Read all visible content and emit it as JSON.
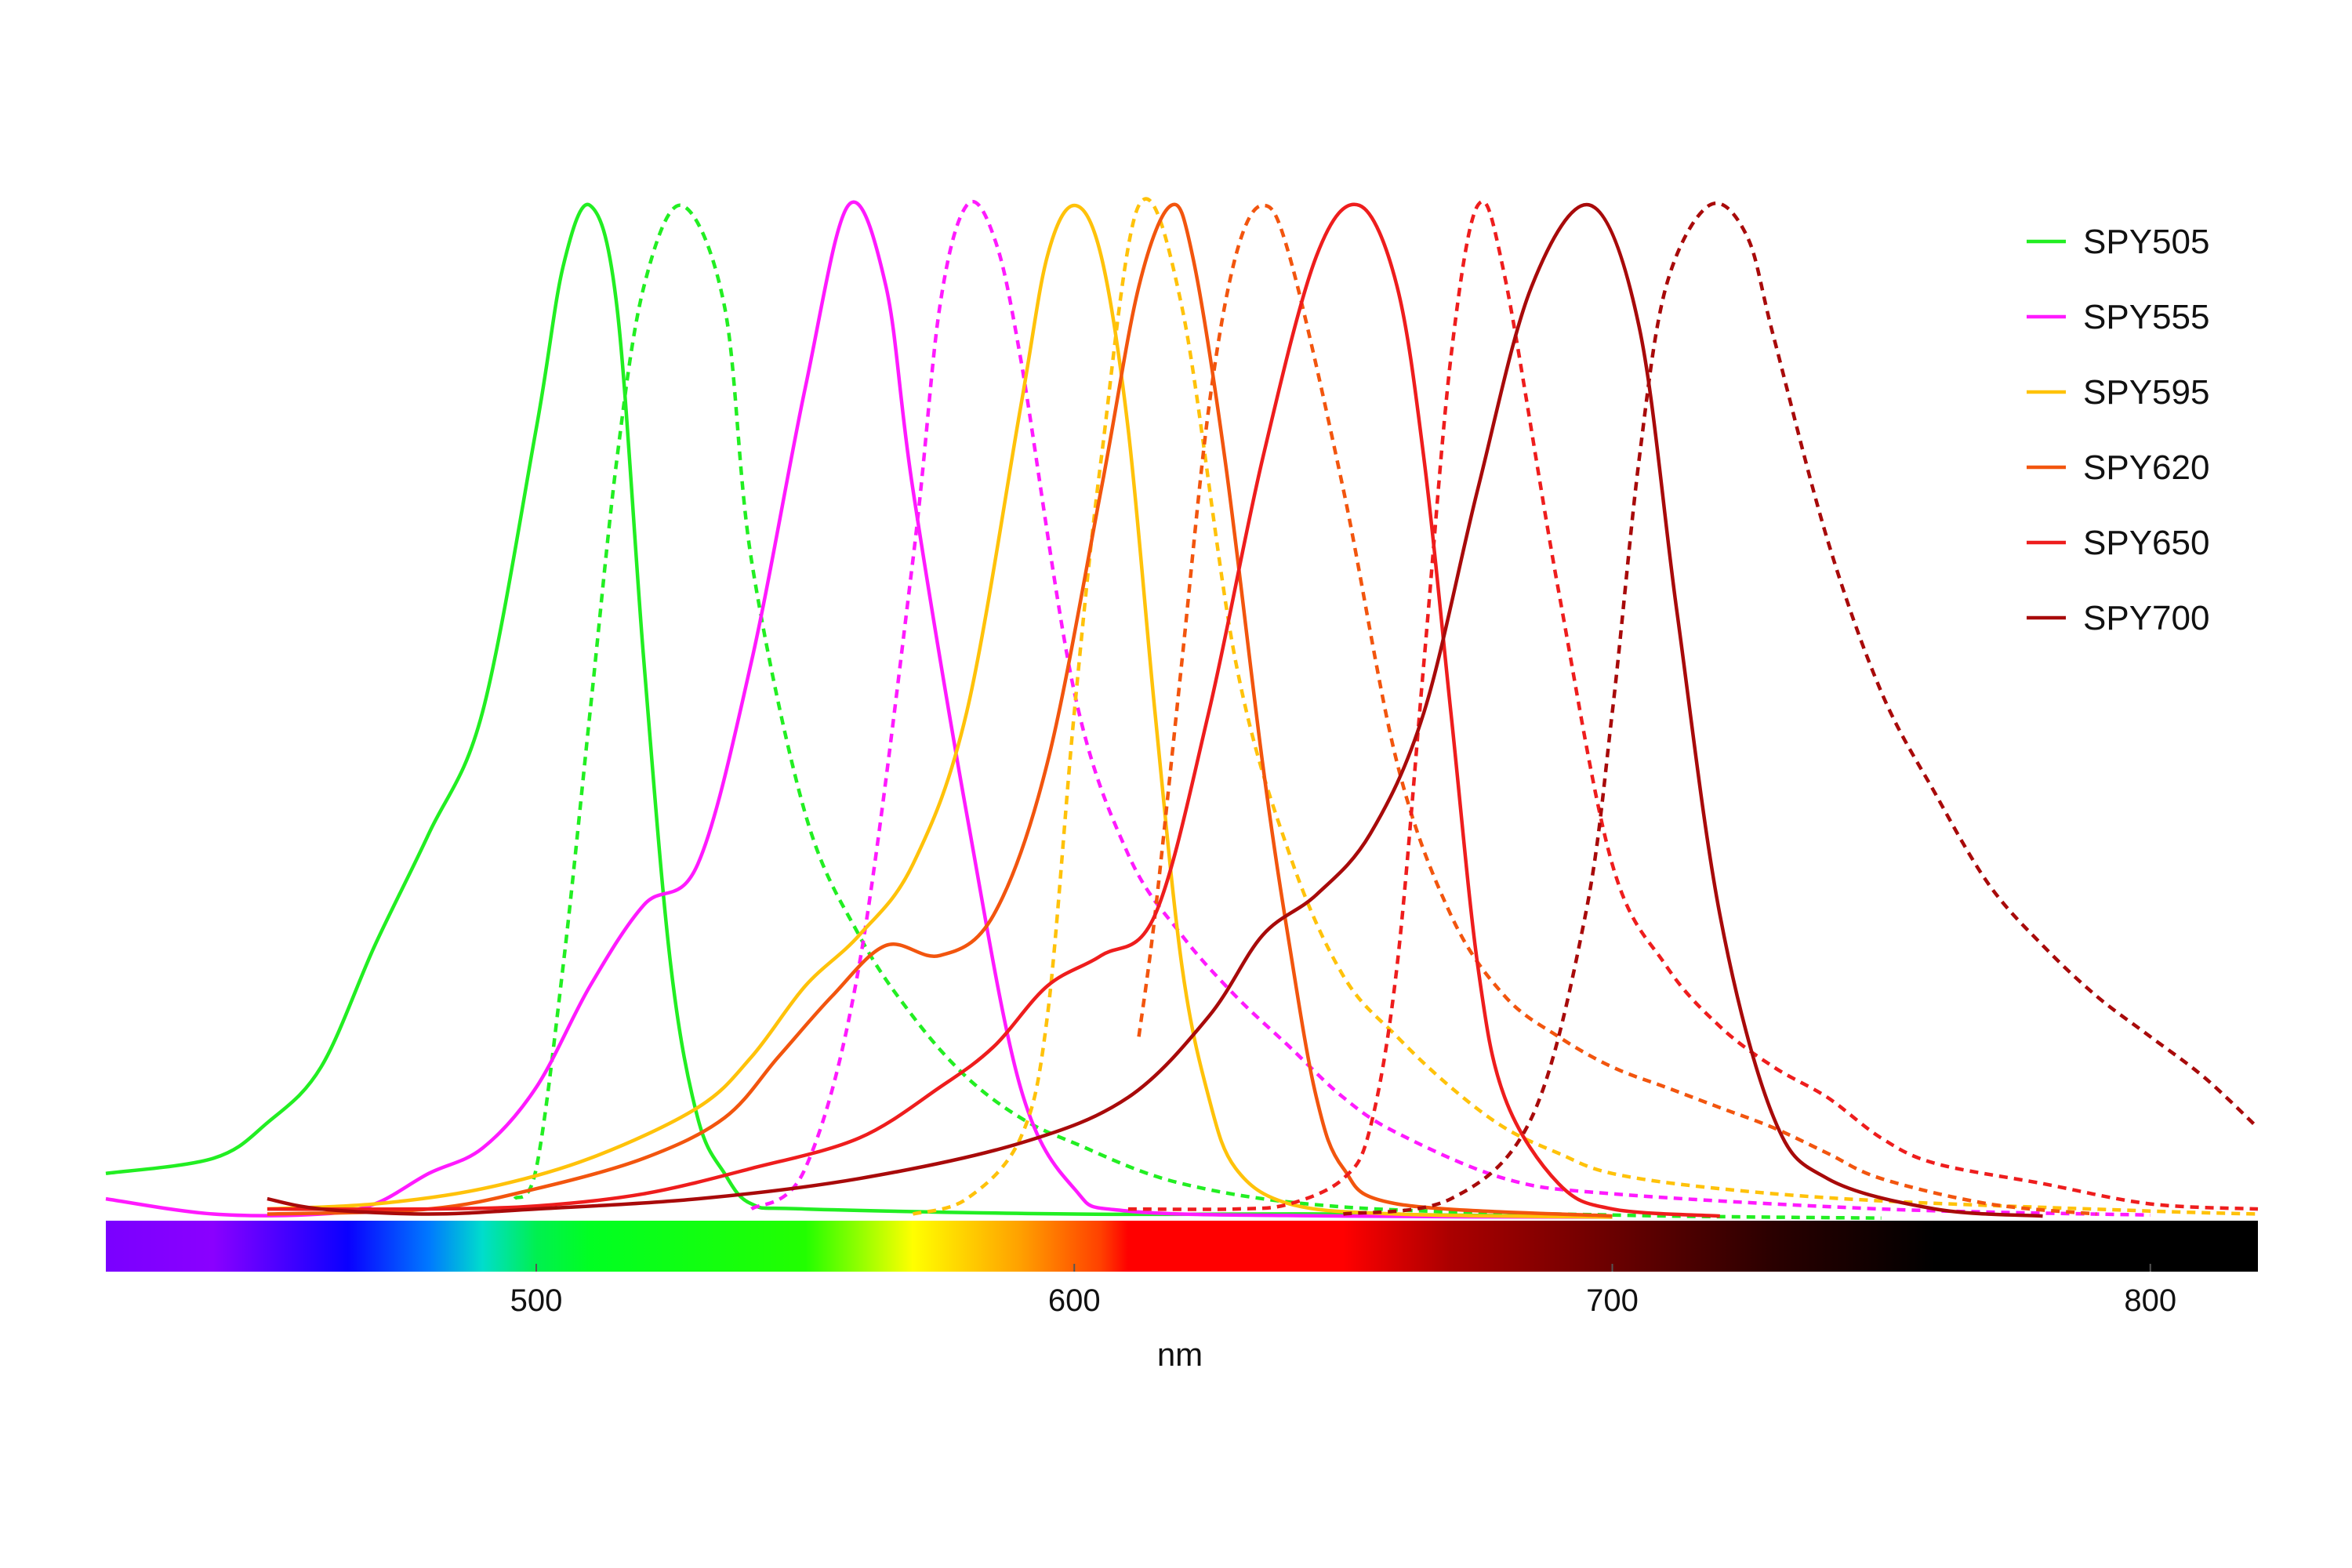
{
  "chart_data": {
    "type": "line",
    "xlabel": "nm",
    "xlim": [
      420,
      820
    ],
    "ylim": [
      0,
      1
    ],
    "x_ticks": [
      500,
      600,
      700,
      800
    ],
    "legend_position": "top-right",
    "grid": false,
    "note_line_styles": {
      "excitation": "solid",
      "emission": "dashed"
    },
    "series": [
      {
        "name": "SPY505",
        "color": "#22ee22",
        "excitation": {
          "peak": 510,
          "left": [
            [
              420,
              0.045
            ],
            [
              440,
              0.06
            ],
            [
              450,
              0.095
            ],
            [
              460,
              0.15
            ],
            [
              470,
              0.27
            ],
            [
              480,
              0.38
            ],
            [
              490,
              0.5
            ],
            [
              500,
              0.78
            ],
            [
              505,
              0.94
            ],
            [
              510,
              1.0
            ],
            [
              515,
              0.9
            ],
            [
              520,
              0.55
            ],
            [
              525,
              0.25
            ],
            [
              530,
              0.1
            ],
            [
              535,
              0.045
            ],
            [
              540,
              0.015
            ],
            [
              550,
              0.01
            ],
            [
              600,
              0.005
            ],
            [
              650,
              0.005
            ],
            [
              700,
              0.002
            ]
          ]
        },
        "emission": {
          "peak": 527,
          "points": [
            [
              496,
              0.02
            ],
            [
              500,
              0.05
            ],
            [
              505,
              0.25
            ],
            [
              510,
              0.5
            ],
            [
              515,
              0.75
            ],
            [
              520,
              0.92
            ],
            [
              527,
              1.0
            ],
            [
              535,
              0.9
            ],
            [
              540,
              0.65
            ],
            [
              550,
              0.4
            ],
            [
              560,
              0.28
            ],
            [
              570,
              0.2
            ],
            [
              580,
              0.14
            ],
            [
              590,
              0.1
            ],
            [
              600,
              0.075
            ],
            [
              620,
              0.035
            ],
            [
              650,
              0.012
            ],
            [
              700,
              0.004
            ],
            [
              750,
              0.001
            ]
          ]
        }
      },
      {
        "name": "SPY555",
        "color": "#ff1aff",
        "excitation": {
          "peak": 558,
          "points": [
            [
              420,
              0.02
            ],
            [
              440,
              0.005
            ],
            [
              460,
              0.005
            ],
            [
              470,
              0.015
            ],
            [
              480,
              0.045
            ],
            [
              490,
              0.07
            ],
            [
              500,
              0.13
            ],
            [
              510,
              0.23
            ],
            [
              520,
              0.31
            ],
            [
              530,
              0.35
            ],
            [
              540,
              0.55
            ],
            [
              550,
              0.82
            ],
            [
              558,
              1.0
            ],
            [
              565,
              0.92
            ],
            [
              570,
              0.72
            ],
            [
              580,
              0.4
            ],
            [
              590,
              0.13
            ],
            [
              600,
              0.03
            ],
            [
              610,
              0.008
            ],
            [
              650,
              0.003
            ],
            [
              700,
              0.002
            ]
          ]
        },
        "emission": {
          "peak": 580,
          "points": [
            [
              540,
              0.01
            ],
            [
              550,
              0.05
            ],
            [
              560,
              0.25
            ],
            [
              570,
              0.65
            ],
            [
              575,
              0.9
            ],
            [
              580,
              1.0
            ],
            [
              585,
              0.97
            ],
            [
              590,
              0.85
            ],
            [
              600,
              0.52
            ],
            [
              610,
              0.36
            ],
            [
              620,
              0.28
            ],
            [
              630,
              0.22
            ],
            [
              640,
              0.17
            ],
            [
              650,
              0.12
            ],
            [
              660,
              0.085
            ],
            [
              680,
              0.04
            ],
            [
              700,
              0.025
            ],
            [
              750,
              0.01
            ],
            [
              800,
              0.004
            ]
          ]
        }
      },
      {
        "name": "SPY595",
        "color": "#ffc20a",
        "excitation": {
          "peak": 600,
          "points": [
            [
              450,
              0.01
            ],
            [
              470,
              0.015
            ],
            [
              490,
              0.03
            ],
            [
              510,
              0.06
            ],
            [
              530,
              0.11
            ],
            [
              540,
              0.16
            ],
            [
              550,
              0.23
            ],
            [
              560,
              0.28
            ],
            [
              570,
              0.35
            ],
            [
              580,
              0.5
            ],
            [
              590,
              0.8
            ],
            [
              595,
              0.95
            ],
            [
              600,
              1.0
            ],
            [
              605,
              0.95
            ],
            [
              610,
              0.78
            ],
            [
              615,
              0.5
            ],
            [
              620,
              0.25
            ],
            [
              625,
              0.12
            ],
            [
              630,
              0.05
            ],
            [
              640,
              0.015
            ],
            [
              660,
              0.005
            ],
            [
              700,
              0.002
            ]
          ]
        },
        "emission": {
          "peak": 612,
          "points": [
            [
              570,
              0.005
            ],
            [
              580,
              0.02
            ],
            [
              590,
              0.08
            ],
            [
              595,
              0.2
            ],
            [
              600,
              0.5
            ],
            [
              605,
              0.75
            ],
            [
              612,
              1.0
            ],
            [
              620,
              0.9
            ],
            [
              630,
              0.55
            ],
            [
              640,
              0.36
            ],
            [
              650,
              0.24
            ],
            [
              660,
              0.18
            ],
            [
              670,
              0.13
            ],
            [
              680,
              0.09
            ],
            [
              690,
              0.065
            ],
            [
              700,
              0.045
            ],
            [
              720,
              0.03
            ],
            [
              750,
              0.018
            ],
            [
              800,
              0.008
            ],
            [
              820,
              0.005
            ]
          ]
        }
      },
      {
        "name": "SPY620",
        "color": "#f2550e",
        "excitation": {
          "peak": 618,
          "points": [
            [
              450,
              0.005
            ],
            [
              480,
              0.01
            ],
            [
              500,
              0.03
            ],
            [
              520,
              0.06
            ],
            [
              535,
              0.1
            ],
            [
              545,
              0.16
            ],
            [
              555,
              0.22
            ],
            [
              565,
              0.27
            ],
            [
              575,
              0.26
            ],
            [
              585,
              0.3
            ],
            [
              595,
              0.45
            ],
            [
              605,
              0.72
            ],
            [
              612,
              0.92
            ],
            [
              618,
              1.0
            ],
            [
              622,
              0.95
            ],
            [
              628,
              0.75
            ],
            [
              635,
              0.45
            ],
            [
              640,
              0.27
            ],
            [
              645,
              0.12
            ],
            [
              650,
              0.05
            ],
            [
              660,
              0.015
            ],
            [
              700,
              0.003
            ]
          ]
        },
        "emission": {
          "peak": 635,
          "points": [
            [
              612,
              0.18
            ],
            [
              615,
              0.3
            ],
            [
              620,
              0.55
            ],
            [
              625,
              0.8
            ],
            [
              630,
              0.95
            ],
            [
              635,
              1.0
            ],
            [
              640,
              0.95
            ],
            [
              650,
              0.72
            ],
            [
              660,
              0.45
            ],
            [
              670,
              0.3
            ],
            [
              680,
              0.22
            ],
            [
              690,
              0.18
            ],
            [
              700,
              0.15
            ],
            [
              710,
              0.13
            ],
            [
              720,
              0.11
            ],
            [
              730,
              0.09
            ],
            [
              740,
              0.065
            ],
            [
              750,
              0.04
            ],
            [
              770,
              0.015
            ],
            [
              790,
              0.005
            ]
          ]
        }
      },
      {
        "name": "SPY650",
        "color": "#ee1d1d",
        "excitation": {
          "peak": 653,
          "points": [
            [
              450,
              0.01
            ],
            [
              480,
              0.01
            ],
            [
              500,
              0.013
            ],
            [
              520,
              0.025
            ],
            [
              540,
              0.05
            ],
            [
              560,
              0.08
            ],
            [
              575,
              0.13
            ],
            [
              585,
              0.17
            ],
            [
              595,
              0.23
            ],
            [
              605,
              0.26
            ],
            [
              615,
              0.3
            ],
            [
              625,
              0.5
            ],
            [
              635,
              0.75
            ],
            [
              645,
              0.95
            ],
            [
              653,
              1.0
            ],
            [
              660,
              0.92
            ],
            [
              665,
              0.75
            ],
            [
              670,
              0.5
            ],
            [
              675,
              0.25
            ],
            [
              680,
              0.12
            ],
            [
              690,
              0.035
            ],
            [
              700,
              0.01
            ],
            [
              720,
              0.003
            ]
          ]
        },
        "emission": {
          "peak": 675,
          "points": [
            [
              610,
              0.01
            ],
            [
              630,
              0.01
            ],
            [
              640,
              0.015
            ],
            [
              650,
              0.04
            ],
            [
              655,
              0.09
            ],
            [
              660,
              0.25
            ],
            [
              665,
              0.55
            ],
            [
              670,
              0.85
            ],
            [
              675,
              1.0
            ],
            [
              680,
              0.93
            ],
            [
              690,
              0.62
            ],
            [
              700,
              0.35
            ],
            [
              710,
              0.25
            ],
            [
              720,
              0.19
            ],
            [
              730,
              0.15
            ],
            [
              740,
              0.12
            ],
            [
              750,
              0.08
            ],
            [
              760,
              0.055
            ],
            [
              780,
              0.035
            ],
            [
              800,
              0.015
            ],
            [
              820,
              0.01
            ]
          ]
        }
      },
      {
        "name": "SPY700",
        "color": "#a80a0a",
        "excitation": {
          "peak": 696,
          "points": [
            [
              450,
              0.02
            ],
            [
              460,
              0.01
            ],
            [
              480,
              0.005
            ],
            [
              500,
              0.01
            ],
            [
              530,
              0.02
            ],
            [
              560,
              0.04
            ],
            [
              590,
              0.075
            ],
            [
              610,
              0.12
            ],
            [
              625,
              0.2
            ],
            [
              635,
              0.28
            ],
            [
              645,
              0.32
            ],
            [
              655,
              0.38
            ],
            [
              665,
              0.5
            ],
            [
              675,
              0.72
            ],
            [
              685,
              0.92
            ],
            [
              696,
              1.0
            ],
            [
              705,
              0.88
            ],
            [
              712,
              0.6
            ],
            [
              720,
              0.3
            ],
            [
              730,
              0.1
            ],
            [
              740,
              0.04
            ],
            [
              760,
              0.01
            ],
            [
              780,
              0.003
            ]
          ]
        },
        "emission": {
          "peak": 718,
          "points": [
            [
              650,
              0.005
            ],
            [
              670,
              0.02
            ],
            [
              685,
              0.1
            ],
            [
              695,
              0.3
            ],
            [
              700,
              0.5
            ],
            [
              705,
              0.75
            ],
            [
              710,
              0.92
            ],
            [
              718,
              1.0
            ],
            [
              725,
              0.97
            ],
            [
              730,
              0.87
            ],
            [
              740,
              0.67
            ],
            [
              750,
              0.52
            ],
            [
              760,
              0.42
            ],
            [
              770,
              0.33
            ],
            [
              780,
              0.27
            ],
            [
              790,
              0.22
            ],
            [
              800,
              0.18
            ],
            [
              810,
              0.14
            ],
            [
              820,
              0.09
            ]
          ]
        }
      }
    ],
    "spectrum_bar": {
      "stops": [
        {
          "nm": 420,
          "color": "#7a00ff"
        },
        {
          "nm": 440,
          "color": "#8a00ff"
        },
        {
          "nm": 465,
          "color": "#0a00ff"
        },
        {
          "nm": 480,
          "color": "#0078ff"
        },
        {
          "nm": 490,
          "color": "#00ddcc"
        },
        {
          "nm": 500,
          "color": "#00f050"
        },
        {
          "nm": 510,
          "color": "#00ff22"
        },
        {
          "nm": 550,
          "color": "#22ff00"
        },
        {
          "nm": 570,
          "color": "#ffff00"
        },
        {
          "nm": 590,
          "color": "#ffa000"
        },
        {
          "nm": 605,
          "color": "#ff4000"
        },
        {
          "nm": 610,
          "color": "#ff0000"
        },
        {
          "nm": 650,
          "color": "#ff0000"
        },
        {
          "nm": 670,
          "color": "#aa0000"
        },
        {
          "nm": 700,
          "color": "#6a0000"
        },
        {
          "nm": 730,
          "color": "#2a0000"
        },
        {
          "nm": 760,
          "color": "#000000"
        },
        {
          "nm": 820,
          "color": "#000000"
        }
      ]
    }
  }
}
